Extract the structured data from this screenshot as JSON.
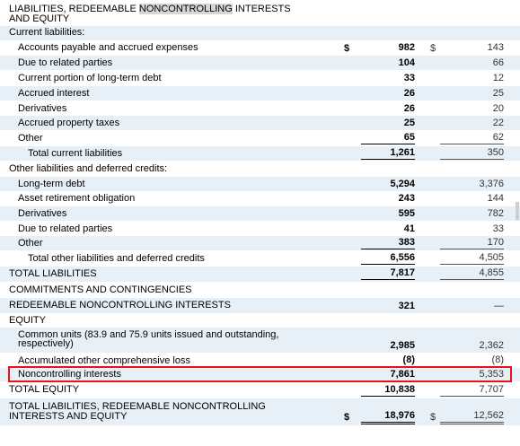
{
  "heading": {
    "prefix": "LIABILITIES, REDEEMABLE ",
    "highlighted": "NONCONTROLLING",
    "suffix": " INTERESTS",
    "line2": "AND EQUITY"
  },
  "current": {
    "header": "Current liabilities:",
    "rows": [
      {
        "label": "Accounts payable and accrued expenses",
        "v1": "982",
        "v2": "143",
        "d1": "$",
        "d2": "$"
      },
      {
        "label": "Due to related parties",
        "v1": "104",
        "v2": "66"
      },
      {
        "label": "Current portion of long-term debt",
        "v1": "33",
        "v2": "12"
      },
      {
        "label": "Accrued interest",
        "v1": "26",
        "v2": "25"
      },
      {
        "label": "Derivatives",
        "v1": "26",
        "v2": "20"
      },
      {
        "label": "Accrued property taxes",
        "v1": "25",
        "v2": "22"
      },
      {
        "label": "Other",
        "v1": "65",
        "v2": "62"
      }
    ],
    "total": {
      "label": "Total current liabilities",
      "v1": "1,261",
      "v2": "350"
    }
  },
  "other": {
    "header": "Other liabilities and deferred credits:",
    "rows": [
      {
        "label": "Long-term debt",
        "v1": "5,294",
        "v2": "3,376"
      },
      {
        "label": "Asset retirement obligation",
        "v1": "243",
        "v2": "144"
      },
      {
        "label": "Derivatives",
        "v1": "595",
        "v2": "782"
      },
      {
        "label": "Due to related parties",
        "v1": "41",
        "v2": "33"
      },
      {
        "label": "Other",
        "v1": "383",
        "v2": "170"
      }
    ],
    "total": {
      "label": "Total other liabilities and deferred credits",
      "v1": "6,556",
      "v2": "4,505"
    }
  },
  "total_liabilities": {
    "label": "TOTAL LIABILITIES",
    "v1": "7,817",
    "v2": "4,855"
  },
  "commitments": {
    "label": "COMMITMENTS AND CONTINGENCIES"
  },
  "redeemable": {
    "label": "REDEEMABLE NONCONTROLLING INTERESTS",
    "v1": "321",
    "v2": "—"
  },
  "equity": {
    "header": "EQUITY",
    "common_units": {
      "line1": "Common units (83.9 and 75.9 units issued and outstanding,",
      "line2": "respectively)",
      "v1": "2,985",
      "v2": "2,362"
    },
    "aoci": {
      "label": "Accumulated other comprehensive loss",
      "v1": "(8)",
      "v2": "(8)"
    },
    "nci": {
      "label": "Noncontrolling interests",
      "v1": "7,861",
      "v2": "5,353"
    },
    "total": {
      "label": "TOTAL EQUITY",
      "v1": "10,838",
      "v2": "7,707"
    }
  },
  "grand_total": {
    "line1": "TOTAL LIABILITIES, REDEEMABLE NONCONTROLLING",
    "line2": "INTERESTS AND EQUITY",
    "d1": "$",
    "v1": "18,976",
    "d2": "$",
    "v2": "12,562"
  },
  "colors": {
    "shade": "#e8f0f7",
    "highlight_box": "#e8121a",
    "text_highlight": "#d6d6d6"
  }
}
